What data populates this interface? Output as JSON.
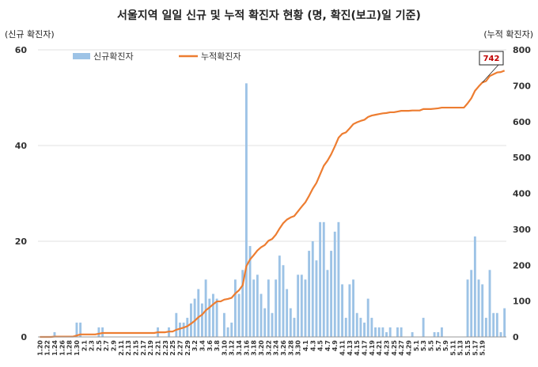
{
  "chart_data": {
    "type": "bar+line",
    "title": "서울지역 일일 신규 및 누적 확진자 현황 (명, 확진(보고)일 기준)",
    "y_left_label": "(신규 확진자)",
    "y_right_label": "(누적 확진자)",
    "y_left_ticks": [
      "0",
      "20",
      "40",
      "60"
    ],
    "y_right_ticks": [
      "0",
      "100",
      "200",
      "300",
      "400",
      "500",
      "600",
      "700",
      "800"
    ],
    "ylim_left": [
      0,
      60
    ],
    "ylim_right": [
      0,
      800
    ],
    "x_tick_labels": [
      "1.20",
      "1.22",
      "1.24",
      "1.26",
      "1.28",
      "1.30",
      "2.1",
      "2.3",
      "2.5",
      "2.7",
      "2.9",
      "2.11",
      "2.13",
      "2.15",
      "2.17",
      "2.19",
      "2.21",
      "2.23",
      "2.25",
      "2.27",
      "2.29",
      "3.2",
      "3.4",
      "3.6",
      "3.8",
      "3.10",
      "3.12",
      "3.14",
      "3.16",
      "3.18",
      "3.20",
      "3.22",
      "3.24",
      "3.26",
      "3.28",
      "3.30",
      "4.1",
      "4.3",
      "4.5",
      "4.7",
      "4.9",
      "4.11",
      "4.13",
      "4.15",
      "4.17",
      "4.19",
      "4.21",
      "4.23",
      "4.25",
      "4.27",
      "4.29",
      "5.1",
      "5.3",
      "5.5",
      "5.7",
      "5.9",
      "5.11",
      "5.13",
      "5.15",
      "5.17",
      "5.19"
    ],
    "legend": [
      {
        "name": "신규확진자",
        "color": "#9dc3e6"
      },
      {
        "name": "누적확진자",
        "color": "#ed7d31"
      }
    ],
    "series": [
      {
        "name": "신규확진자",
        "axis": "left",
        "values": [
          0,
          0,
          0,
          0,
          1,
          0,
          0,
          0,
          0,
          0,
          3,
          3,
          0,
          0,
          0,
          0,
          2,
          2,
          0,
          0,
          0,
          0,
          0,
          0,
          0,
          0,
          0,
          0,
          0,
          0,
          0,
          0,
          2,
          0,
          0,
          2,
          0,
          5,
          3,
          3,
          4,
          7,
          8,
          10,
          7,
          12,
          8,
          9,
          8,
          0,
          5,
          2,
          3,
          12,
          9,
          14,
          53,
          19,
          12,
          13,
          9,
          6,
          12,
          5,
          12,
          17,
          15,
          10,
          6,
          4,
          13,
          13,
          12,
          18,
          20,
          16,
          24,
          24,
          14,
          18,
          22,
          24,
          11,
          4,
          11,
          12,
          5,
          4,
          3,
          8,
          4,
          2,
          2,
          2,
          1,
          2,
          0,
          2,
          2,
          0,
          0,
          1,
          0,
          0,
          4,
          0,
          0,
          1,
          1,
          2,
          0,
          0,
          0,
          0,
          0,
          0,
          12,
          14,
          21,
          12,
          11,
          4,
          14,
          5,
          5,
          1,
          6
        ]
      },
      {
        "name": "누적확진자",
        "axis": "right",
        "values": [
          0,
          0,
          0,
          0,
          1,
          1,
          1,
          1,
          1,
          1,
          4,
          7,
          7,
          7,
          7,
          7,
          9,
          11,
          11,
          11,
          11,
          11,
          11,
          11,
          11,
          11,
          11,
          11,
          11,
          11,
          11,
          11,
          13,
          13,
          13,
          15,
          15,
          20,
          23,
          26,
          30,
          37,
          45,
          55,
          62,
          74,
          82,
          91,
          99,
          99,
          104,
          106,
          109,
          121,
          130,
          144,
          197,
          216,
          228,
          241,
          250,
          256,
          268,
          273,
          285,
          302,
          317,
          327,
          333,
          337,
          350,
          363,
          375,
          393,
          413,
          429,
          453,
          477,
          491,
          509,
          531,
          555,
          566,
          570,
          581,
          593,
          598,
          602,
          605,
          613,
          617,
          619,
          621,
          623,
          624,
          626,
          626,
          628,
          630,
          630,
          630,
          631,
          631,
          631,
          635,
          635,
          635,
          636,
          637,
          639,
          639,
          639,
          639,
          639,
          639,
          639,
          651,
          665,
          686,
          698,
          709,
          713,
          727,
          732,
          737,
          738,
          742
        ]
      }
    ],
    "annotations": [
      {
        "text": "742",
        "target_series": "누적확진자",
        "index": 120
      }
    ]
  }
}
